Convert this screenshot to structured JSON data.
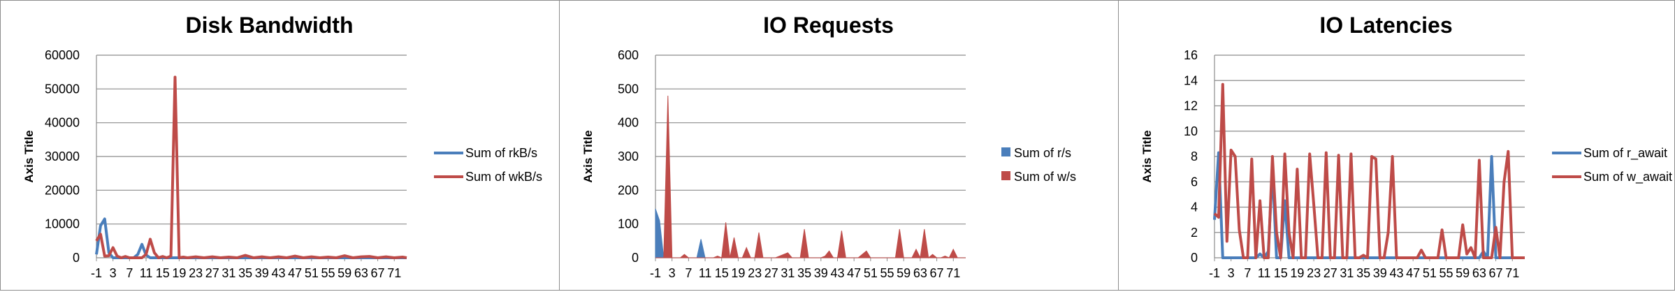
{
  "chart_data": [
    {
      "type": "line",
      "title": "Disk Bandwidth",
      "ylabel": "Axis Title",
      "xlabel": "",
      "ylim": [
        0,
        60000
      ],
      "yticks": [
        0,
        10000,
        20000,
        30000,
        40000,
        50000,
        60000
      ],
      "xticks": [
        -1,
        3,
        7,
        11,
        15,
        19,
        23,
        27,
        31,
        35,
        39,
        43,
        47,
        51,
        55,
        59,
        63,
        67,
        71
      ],
      "x_range": [
        -1,
        74
      ],
      "legend": "right",
      "grid": true,
      "series": [
        {
          "name": "Sum of rkB/s",
          "color": "#4a7ebb",
          "x": [
            -1,
            0,
            1,
            2,
            3,
            4,
            8,
            9,
            10,
            11,
            12,
            74
          ],
          "values": [
            1000,
            9500,
            11500,
            1500,
            0,
            0,
            0,
            1000,
            4000,
            800,
            0,
            0
          ]
        },
        {
          "name": "Sum of wkB/s",
          "color": "#be4b48",
          "x": [
            -1,
            0,
            1,
            2,
            3,
            4,
            5,
            6,
            7,
            8,
            10,
            11,
            12,
            13,
            14,
            15,
            16,
            17,
            18,
            19,
            20,
            21,
            23,
            25,
            27,
            29,
            31,
            33,
            35,
            37,
            39,
            41,
            43,
            45,
            47,
            49,
            51,
            53,
            55,
            57,
            59,
            61,
            63,
            65,
            67,
            69,
            71,
            73,
            74
          ],
          "values": [
            5000,
            7000,
            500,
            600,
            3000,
            500,
            0,
            400,
            0,
            0,
            0,
            1000,
            5500,
            1500,
            0,
            400,
            0,
            500,
            53500,
            0,
            200,
            0,
            300,
            0,
            300,
            0,
            200,
            0,
            700,
            0,
            300,
            0,
            300,
            0,
            500,
            0,
            300,
            0,
            200,
            0,
            600,
            0,
            300,
            400,
            0,
            300,
            0,
            200,
            0
          ]
        }
      ]
    },
    {
      "type": "area",
      "title": "IO Requests",
      "ylabel": "Axis Title",
      "xlabel": "",
      "ylim": [
        0,
        600
      ],
      "yticks": [
        0,
        100,
        200,
        300,
        400,
        500,
        600
      ],
      "xticks": [
        -1,
        3,
        7,
        11,
        15,
        19,
        23,
        27,
        31,
        35,
        39,
        43,
        47,
        51,
        55,
        59,
        63,
        67,
        71
      ],
      "x_range": [
        -1,
        74
      ],
      "legend": "right",
      "grid": true,
      "series": [
        {
          "name": "Sum of r/s",
          "color": "#4a7ebb",
          "x": [
            -1,
            0,
            1,
            2,
            9,
            10,
            11,
            74
          ],
          "values": [
            145,
            110,
            0,
            0,
            0,
            55,
            0,
            0
          ]
        },
        {
          "name": "Sum of w/s",
          "color": "#be4b48",
          "x": [
            -1,
            0,
            1,
            2,
            3,
            4,
            5,
            6,
            7,
            8,
            13,
            14,
            15,
            16,
            17,
            18,
            19,
            20,
            21,
            22,
            23,
            24,
            25,
            26,
            27,
            28,
            31,
            32,
            33,
            34,
            35,
            36,
            37,
            38,
            39,
            40,
            41,
            42,
            43,
            44,
            45,
            46,
            47,
            48,
            50,
            51,
            52,
            57,
            58,
            59,
            60,
            61,
            62,
            63,
            64,
            65,
            66,
            67,
            68,
            69,
            70,
            71,
            72,
            73,
            74
          ],
          "values": [
            0,
            0,
            0,
            480,
            0,
            0,
            0,
            10,
            0,
            0,
            0,
            5,
            0,
            105,
            0,
            60,
            0,
            0,
            30,
            0,
            0,
            75,
            0,
            0,
            0,
            0,
            15,
            0,
            0,
            0,
            85,
            0,
            0,
            0,
            0,
            5,
            20,
            0,
            0,
            80,
            0,
            0,
            0,
            0,
            20,
            0,
            0,
            0,
            85,
            0,
            0,
            0,
            25,
            0,
            85,
            0,
            10,
            0,
            0,
            5,
            0,
            25,
            0,
            0,
            0
          ]
        }
      ]
    },
    {
      "type": "line",
      "title": "IO Latencies",
      "ylabel": "Axis Title",
      "xlabel": "",
      "ylim": [
        0,
        16
      ],
      "yticks": [
        0,
        2,
        4,
        6,
        8,
        10,
        12,
        14,
        16
      ],
      "xticks": [
        -1,
        3,
        7,
        11,
        15,
        19,
        23,
        27,
        31,
        35,
        39,
        43,
        47,
        51,
        55,
        59,
        63,
        67,
        71
      ],
      "x_range": [
        -1,
        74
      ],
      "legend": "right",
      "grid": true,
      "series": [
        {
          "name": "Sum of r_await",
          "color": "#4a7ebb",
          "x": [
            -1,
            0,
            1,
            2,
            9,
            10,
            11,
            12,
            13,
            14,
            15,
            16,
            17,
            18,
            63,
            64,
            65,
            66,
            67,
            74
          ],
          "values": [
            3,
            8.3,
            0,
            0,
            0,
            0.3,
            0,
            0.5,
            7,
            0,
            0,
            4.5,
            0,
            0,
            0,
            0.5,
            0,
            8,
            0,
            0
          ]
        },
        {
          "name": "Sum of w_await",
          "color": "#be4b48",
          "x": [
            -1,
            0,
            1,
            2,
            3,
            4,
            5,
            6,
            7,
            8,
            9,
            10,
            11,
            12,
            13,
            14,
            15,
            16,
            17,
            18,
            19,
            20,
            21,
            22,
            23,
            24,
            25,
            26,
            27,
            28,
            29,
            30,
            31,
            32,
            33,
            34,
            35,
            36,
            37,
            38,
            39,
            40,
            41,
            42,
            43,
            44,
            45,
            46,
            47,
            48,
            49,
            50,
            51,
            52,
            53,
            54,
            55,
            56,
            57,
            58,
            59,
            60,
            61,
            62,
            63,
            64,
            65,
            66,
            67,
            68,
            69,
            70,
            71,
            72,
            73,
            74
          ],
          "values": [
            3.5,
            3.2,
            13.7,
            1.3,
            8.5,
            8,
            2.2,
            0,
            0,
            7.8,
            0,
            4.5,
            0,
            0,
            8,
            2,
            0,
            8.2,
            2,
            0,
            7,
            0,
            0,
            8.2,
            4.2,
            0,
            0,
            8.3,
            0,
            0,
            8.1,
            0,
            0,
            8.2,
            0,
            0,
            0.2,
            0,
            8,
            7.8,
            0,
            0,
            2,
            8,
            0,
            0,
            0,
            0,
            0,
            0,
            0.6,
            0,
            0,
            0,
            0,
            2.2,
            0,
            0,
            0,
            0,
            2.6,
            0.3,
            0.8,
            0,
            7.7,
            0,
            0,
            0,
            2.4,
            0,
            6,
            8.4,
            0,
            0,
            0,
            0
          ]
        }
      ]
    }
  ]
}
